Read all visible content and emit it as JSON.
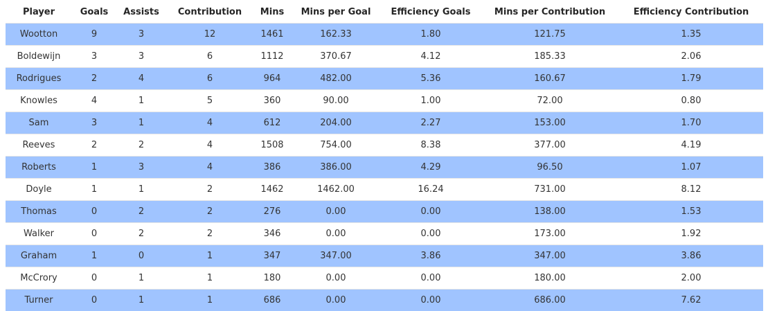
{
  "table": {
    "header": [
      "Player",
      "Goals",
      "Assists",
      "Contribution",
      "Mins",
      "Mins per Goal",
      "Efficiency Goals",
      "Mins per Contribution",
      "Efficiency Contribution"
    ],
    "rows": [
      [
        "Wootton",
        "9",
        "3",
        "12",
        "1461",
        "162.33",
        "1.80",
        "121.75",
        "1.35"
      ],
      [
        "Boldewijn",
        "3",
        "3",
        "6",
        "1112",
        "370.67",
        "4.12",
        "185.33",
        "2.06"
      ],
      [
        "Rodrigues",
        "2",
        "4",
        "6",
        "964",
        "482.00",
        "5.36",
        "160.67",
        "1.79"
      ],
      [
        "Knowles",
        "4",
        "1",
        "5",
        "360",
        "90.00",
        "1.00",
        "72.00",
        "0.80"
      ],
      [
        "Sam",
        "3",
        "1",
        "4",
        "612",
        "204.00",
        "2.27",
        "153.00",
        "1.70"
      ],
      [
        "Reeves",
        "2",
        "2",
        "4",
        "1508",
        "754.00",
        "8.38",
        "377.00",
        "4.19"
      ],
      [
        "Roberts",
        "1",
        "3",
        "4",
        "386",
        "386.00",
        "4.29",
        "96.50",
        "1.07"
      ],
      [
        "Doyle",
        "1",
        "1",
        "2",
        "1462",
        "1462.00",
        "16.24",
        "731.00",
        "8.12"
      ],
      [
        "Thomas",
        "0",
        "2",
        "2",
        "276",
        "0.00",
        "0.00",
        "138.00",
        "1.53"
      ],
      [
        "Walker",
        "0",
        "2",
        "2",
        "346",
        "0.00",
        "0.00",
        "173.00",
        "1.92"
      ],
      [
        "Graham",
        "1",
        "0",
        "1",
        "347",
        "347.00",
        "3.86",
        "347.00",
        "3.86"
      ],
      [
        "McCrory",
        "0",
        "1",
        "1",
        "180",
        "0.00",
        "0.00",
        "180.00",
        "2.00"
      ],
      [
        "Turner",
        "0",
        "1",
        "1",
        "686",
        "0.00",
        "0.00",
        "686.00",
        "7.62"
      ]
    ]
  }
}
